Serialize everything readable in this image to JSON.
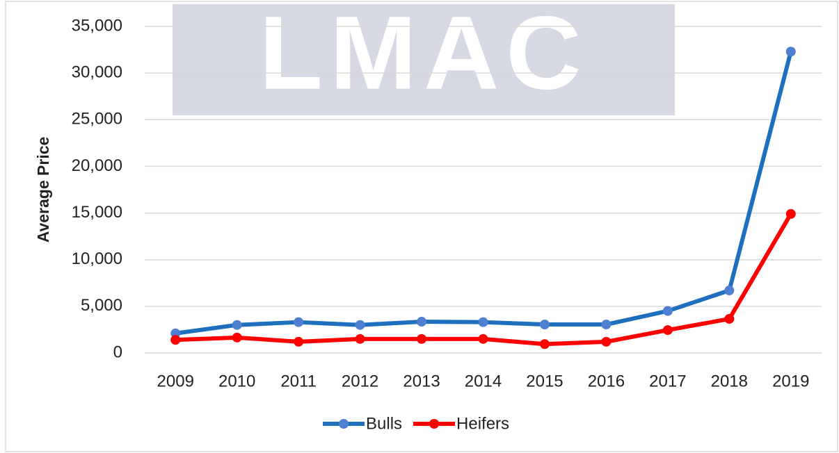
{
  "chart_data": {
    "type": "line",
    "watermark": "LMAC",
    "y_label": "Average Price",
    "categories": [
      "2009",
      "2010",
      "2011",
      "2012",
      "2013",
      "2014",
      "2015",
      "2016",
      "2017",
      "2018",
      "2019"
    ],
    "series": [
      {
        "name": "Bulls",
        "color": "#1f6fbf",
        "marker_color": "#4f7fd0",
        "values": [
          2100,
          3000,
          3300,
          3000,
          3350,
          3300,
          3050,
          3050,
          4500,
          6700,
          32300
        ]
      },
      {
        "name": "Heifers",
        "color": "#ff0000",
        "marker_color": "#ff0000",
        "values": [
          1400,
          1650,
          1200,
          1500,
          1500,
          1500,
          950,
          1200,
          2450,
          3650,
          14900
        ]
      }
    ],
    "ylim": [
      0,
      35000
    ],
    "yticks": [
      0,
      {
        "value": 5000,
        "label": "5,000"
      },
      {
        "value": 10000,
        "label": "10,000"
      },
      {
        "value": 15000,
        "label": "15,000"
      },
      {
        "value": 20000,
        "label": "20,000"
      },
      {
        "value": 25000,
        "label": "25,000"
      },
      {
        "value": 30000,
        "label": "30,000"
      },
      {
        "value": 35000,
        "label": "35,000"
      }
    ],
    "grid": true,
    "legend": "bottom"
  }
}
